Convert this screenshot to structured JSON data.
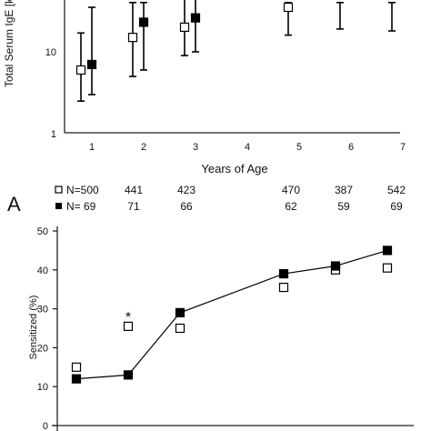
{
  "panel_label": "A",
  "n_rows": [
    {
      "label": "N=500",
      "values": [
        "441",
        "423",
        "",
        "470",
        "387",
        "542"
      ]
    },
    {
      "label": "N= 69",
      "values": [
        "71",
        "66",
        "",
        "62",
        "59",
        "69"
      ]
    }
  ],
  "chart_data": [
    {
      "type": "scatter",
      "title": "",
      "ylabel": "Total Serum IgE [k",
      "xlabel": "Years of Age",
      "y_scale": "log",
      "ylim": [
        1,
        40
      ],
      "xlim": [
        0.5,
        7.5
      ],
      "x_ticks": [
        "1",
        "2",
        "3",
        "4",
        "5",
        "6",
        "7"
      ],
      "y_ticks": [
        "1",
        "10"
      ],
      "series": [
        {
          "marker": "open-square",
          "x": [
            1,
            2,
            3,
            5,
            6,
            7
          ],
          "y": [
            6,
            15,
            20,
            35,
            null,
            null
          ],
          "err_low": [
            2.5,
            5,
            9,
            16,
            19,
            18
          ],
          "err_high": [
            17,
            40,
            45,
            40,
            40,
            40
          ]
        },
        {
          "marker": "filled-square",
          "x": [
            1,
            2,
            3
          ],
          "y": [
            7,
            23,
            26
          ],
          "err_low": [
            3,
            6,
            10
          ],
          "err_high": [
            35,
            40,
            45
          ]
        }
      ]
    },
    {
      "type": "line",
      "title": "",
      "ylabel": "Sensitized (%)",
      "xlabel": "",
      "ylim": [
        0,
        50
      ],
      "y_ticks": [
        "0",
        "10",
        "20",
        "30",
        "40",
        "50"
      ],
      "annotations": [
        {
          "text": "*",
          "x": 2,
          "y": 28.5
        }
      ],
      "series": [
        {
          "marker": "open-square",
          "x": [
            1,
            2,
            3,
            5,
            6,
            7
          ],
          "y": [
            15,
            25.5,
            25,
            35.5,
            40,
            40.5
          ]
        },
        {
          "marker": "filled-square",
          "connected": true,
          "x": [
            1,
            2,
            3,
            5,
            6,
            7
          ],
          "y": [
            12,
            13,
            29,
            39,
            41,
            45
          ]
        }
      ]
    }
  ]
}
